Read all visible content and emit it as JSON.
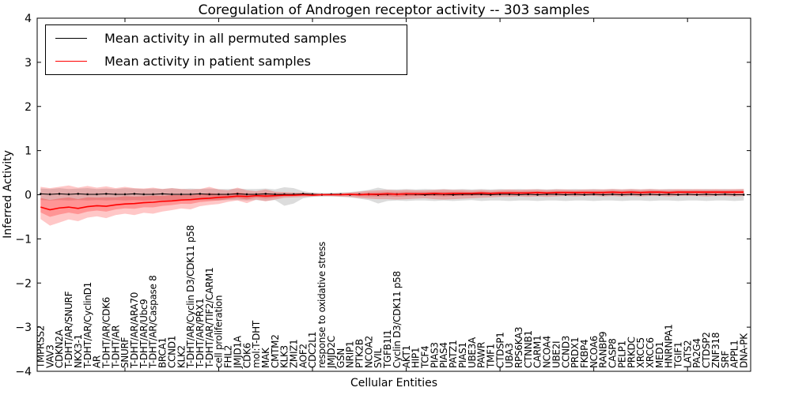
{
  "figure": {
    "title": "Coregulation of Androgen receptor activity -- 303 samples",
    "xlabel": "Cellular Entities",
    "ylabel": "Inferred Activity"
  },
  "legend": {
    "entries": [
      {
        "label": "Mean activity in all permuted samples",
        "color": "#000000"
      },
      {
        "label": "Mean activity in patient samples",
        "color": "#ff0000"
      }
    ]
  },
  "chart_data": {
    "type": "line",
    "title": "Coregulation of Androgen receptor activity -- 303 samples",
    "xlabel": "Cellular Entities",
    "ylabel": "Inferred Activity",
    "ylim": [
      -4,
      4
    ],
    "yticks": [
      4,
      3,
      2,
      1,
      0,
      -1,
      -2,
      -3,
      -4
    ],
    "grid": false,
    "legend_position": "upper left",
    "categories": [
      "TMPRSS2",
      "VAV3",
      "CDKN2A",
      "T-DHT/AR/SNURF",
      "NKX3-1",
      "T-DHT/AR/CyclinD1",
      "AR",
      "T-DHT/AR/CDK6",
      "T-DHT/AR",
      "SNURF",
      "T-DHT/AR/ARA70",
      "T-DHT/AR/Ubc9",
      "T-DHT/AR/Caspase 8",
      "BRCA1",
      "CCND1",
      "KLK2",
      "T-DHT/AR/Cyclin D3/CDK11 p58",
      "T-DHT/AR/PRX1",
      "T-DHT/AR/TIF2/CARM1",
      "cell proliferation",
      "FHL2",
      "JMJD1A",
      "CDK6",
      "mol:T-DHT",
      "MAK",
      "CMTM2",
      "KLK3",
      "ZMIZ1",
      "AOF2",
      "CDC2L1",
      "response to oxidative stress",
      "JMJD2C",
      "GSN",
      "NRIP1",
      "PTK2B",
      "NCOA2",
      "SVIL",
      "TGFB1I1",
      "Cyclin D3/CDK11 p58",
      "AKT1",
      "HIP1",
      "TCF4",
      "PIAS3",
      "PIAS4",
      "PATZ1",
      "PIAS1",
      "UBE3A",
      "PAWR",
      "TMF1",
      "CTDSP1",
      "UBA3",
      "RPS6KA3",
      "CTNNB1",
      "CARM1",
      "NCOA4",
      "UBE2I",
      "CCND3",
      "PRDX1",
      "FKBP4",
      "NCOA6",
      "RANBP9",
      "CASP8",
      "PELP1",
      "PRKDC",
      "XRCC5",
      "XRCC6",
      "MED1",
      "HNRNPA1",
      "TGIF1",
      "LATS2",
      "PA2G4",
      "CTDSP2",
      "ZNF318",
      "SRF",
      "APPL1",
      "DNA-PK"
    ],
    "series": [
      {
        "name": "Mean activity in all permuted samples",
        "color": "#000000",
        "band_color": "rgba(128,128,128,0.28)",
        "values": [
          0.02,
          0.01,
          0.02,
          0.01,
          0.02,
          0.01,
          0.01,
          0.02,
          0.01,
          0.01,
          0.02,
          0.01,
          0.01,
          0.02,
          0.01,
          0.01,
          0.01,
          0.02,
          0.01,
          0.01,
          0.01,
          0.02,
          0.01,
          0.01,
          0.02,
          0.01,
          0.01,
          0.01,
          0.02,
          0.01,
          0.0,
          0.01,
          0.01,
          0.0,
          0.01,
          0.01,
          0.0,
          0.01,
          0.01,
          0.01,
          0.01,
          0.0,
          0.01,
          0.01,
          0.0,
          0.01,
          0.01,
          0.01,
          0.0,
          0.01,
          0.01,
          0.0,
          0.01,
          0.0,
          0.01,
          0.01,
          0.0,
          0.01,
          0.0,
          0.01,
          0.0,
          0.01,
          0.0,
          0.01,
          0.0,
          0.01,
          0.0,
          0.01,
          0.0,
          0.01,
          0.0,
          0.01,
          0.0,
          0.01,
          0.0,
          0.0
        ],
        "band": [
          [
            -0.12,
            0.14
          ],
          [
            -0.13,
            0.13
          ],
          [
            -0.12,
            0.15
          ],
          [
            -0.13,
            0.13
          ],
          [
            -0.12,
            0.14
          ],
          [
            -0.13,
            0.15
          ],
          [
            -0.12,
            0.13
          ],
          [
            -0.13,
            0.14
          ],
          [
            -0.12,
            0.13
          ],
          [
            -0.13,
            0.15
          ],
          [
            -0.12,
            0.14
          ],
          [
            -0.13,
            0.13
          ],
          [
            -0.12,
            0.14
          ],
          [
            -0.13,
            0.13
          ],
          [
            -0.12,
            0.15
          ],
          [
            -0.12,
            0.13
          ],
          [
            -0.13,
            0.14
          ],
          [
            -0.12,
            0.13
          ],
          [
            -0.12,
            0.14
          ],
          [
            -0.13,
            0.13
          ],
          [
            -0.12,
            0.13
          ],
          [
            -0.12,
            0.14
          ],
          [
            -0.13,
            0.13
          ],
          [
            -0.12,
            0.13
          ],
          [
            -0.14,
            0.14
          ],
          [
            -0.12,
            0.12
          ],
          [
            -0.25,
            0.17
          ],
          [
            -0.2,
            0.15
          ],
          [
            -0.08,
            0.08
          ],
          [
            -0.05,
            0.05
          ],
          [
            -0.04,
            0.04
          ],
          [
            -0.04,
            0.04
          ],
          [
            -0.05,
            0.05
          ],
          [
            -0.06,
            0.06
          ],
          [
            -0.09,
            0.08
          ],
          [
            -0.12,
            0.11
          ],
          [
            -0.2,
            0.16
          ],
          [
            -0.14,
            0.12
          ],
          [
            -0.13,
            0.12
          ],
          [
            -0.14,
            0.13
          ],
          [
            -0.13,
            0.12
          ],
          [
            -0.13,
            0.13
          ],
          [
            -0.14,
            0.12
          ],
          [
            -0.13,
            0.13
          ],
          [
            -0.14,
            0.12
          ],
          [
            -0.13,
            0.13
          ],
          [
            -0.12,
            0.12
          ],
          [
            -0.14,
            0.13
          ],
          [
            -0.13,
            0.12
          ],
          [
            -0.13,
            0.13
          ],
          [
            -0.14,
            0.12
          ],
          [
            -0.13,
            0.13
          ],
          [
            -0.13,
            0.12
          ],
          [
            -0.14,
            0.13
          ],
          [
            -0.13,
            0.12
          ],
          [
            -0.13,
            0.13
          ],
          [
            -0.14,
            0.12
          ],
          [
            -0.13,
            0.13
          ],
          [
            -0.13,
            0.12
          ],
          [
            -0.14,
            0.13
          ],
          [
            -0.13,
            0.12
          ],
          [
            -0.13,
            0.13
          ],
          [
            -0.14,
            0.12
          ],
          [
            -0.13,
            0.13
          ],
          [
            -0.13,
            0.12
          ],
          [
            -0.14,
            0.13
          ],
          [
            -0.13,
            0.12
          ],
          [
            -0.13,
            0.13
          ],
          [
            -0.14,
            0.12
          ],
          [
            -0.13,
            0.13
          ],
          [
            -0.13,
            0.12
          ],
          [
            -0.14,
            0.13
          ],
          [
            -0.13,
            0.12
          ],
          [
            -0.13,
            0.13
          ],
          [
            -0.14,
            0.12
          ],
          [
            -0.13,
            0.13
          ]
        ]
      },
      {
        "name": "Mean activity in patient samples",
        "color": "#ff0000",
        "band_color": "rgba(255,0,0,0.22)",
        "inner_band_fraction": 0.45,
        "values": [
          -0.28,
          -0.34,
          -0.3,
          -0.28,
          -0.31,
          -0.27,
          -0.25,
          -0.26,
          -0.23,
          -0.21,
          -0.2,
          -0.18,
          -0.17,
          -0.15,
          -0.14,
          -0.12,
          -0.11,
          -0.09,
          -0.08,
          -0.06,
          -0.05,
          -0.03,
          -0.04,
          -0.02,
          -0.03,
          -0.02,
          -0.01,
          -0.01,
          0.0,
          -0.01,
          0.0,
          0.0,
          0.0,
          0.01,
          0.0,
          0.01,
          0.01,
          0.02,
          0.01,
          0.02,
          0.02,
          0.02,
          0.03,
          0.02,
          0.03,
          0.03,
          0.03,
          0.04,
          0.03,
          0.04,
          0.04,
          0.04,
          0.04,
          0.05,
          0.04,
          0.05,
          0.05,
          0.05,
          0.05,
          0.05,
          0.05,
          0.06,
          0.05,
          0.06,
          0.05,
          0.06,
          0.06,
          0.05,
          0.06,
          0.06,
          0.06,
          0.06,
          0.06,
          0.06,
          0.06,
          0.06
        ],
        "band": [
          [
            -0.55,
            0.18
          ],
          [
            -0.7,
            0.15
          ],
          [
            -0.63,
            0.18
          ],
          [
            -0.56,
            0.21
          ],
          [
            -0.6,
            0.16
          ],
          [
            -0.52,
            0.2
          ],
          [
            -0.49,
            0.16
          ],
          [
            -0.53,
            0.19
          ],
          [
            -0.46,
            0.15
          ],
          [
            -0.43,
            0.18
          ],
          [
            -0.46,
            0.15
          ],
          [
            -0.41,
            0.14
          ],
          [
            -0.43,
            0.16
          ],
          [
            -0.38,
            0.13
          ],
          [
            -0.35,
            0.15
          ],
          [
            -0.31,
            0.13
          ],
          [
            -0.33,
            0.12
          ],
          [
            -0.26,
            0.13
          ],
          [
            -0.23,
            0.18
          ],
          [
            -0.21,
            0.12
          ],
          [
            -0.16,
            0.1
          ],
          [
            -0.13,
            0.16
          ],
          [
            -0.19,
            0.1
          ],
          [
            -0.11,
            0.08
          ],
          [
            -0.15,
            0.12
          ],
          [
            -0.11,
            0.07
          ],
          [
            -0.07,
            0.06
          ],
          [
            -0.06,
            0.05
          ],
          [
            -0.05,
            0.05
          ],
          [
            -0.04,
            0.04
          ],
          [
            -0.03,
            0.03
          ],
          [
            -0.03,
            0.03
          ],
          [
            -0.04,
            0.04
          ],
          [
            -0.05,
            0.05
          ],
          [
            -0.07,
            0.07
          ],
          [
            -0.09,
            0.09
          ],
          [
            -0.1,
            0.1
          ],
          [
            -0.1,
            0.11
          ],
          [
            -0.11,
            0.1
          ],
          [
            -0.1,
            0.11
          ],
          [
            -0.09,
            0.1
          ],
          [
            -0.08,
            0.1
          ],
          [
            -0.1,
            0.11
          ],
          [
            -0.11,
            0.12
          ],
          [
            -0.1,
            0.11
          ],
          [
            -0.09,
            0.11
          ],
          [
            -0.08,
            0.1
          ],
          [
            -0.07,
            0.11
          ],
          [
            -0.06,
            0.1
          ],
          [
            -0.05,
            0.11
          ],
          [
            -0.05,
            0.12
          ],
          [
            -0.04,
            0.11
          ],
          [
            -0.05,
            0.12
          ],
          [
            -0.04,
            0.12
          ],
          [
            -0.05,
            0.11
          ],
          [
            -0.04,
            0.12
          ],
          [
            -0.03,
            0.12
          ],
          [
            -0.04,
            0.11
          ],
          [
            -0.03,
            0.12
          ],
          [
            -0.03,
            0.12
          ],
          [
            -0.04,
            0.12
          ],
          [
            -0.03,
            0.13
          ],
          [
            -0.04,
            0.12
          ],
          [
            -0.03,
            0.13
          ],
          [
            -0.04,
            0.12
          ],
          [
            -0.03,
            0.13
          ],
          [
            -0.03,
            0.12
          ],
          [
            -0.04,
            0.12
          ],
          [
            -0.03,
            0.13
          ],
          [
            -0.03,
            0.12
          ],
          [
            -0.03,
            0.13
          ],
          [
            -0.04,
            0.12
          ],
          [
            -0.03,
            0.13
          ],
          [
            -0.03,
            0.12
          ],
          [
            -0.04,
            0.13
          ],
          [
            -0.03,
            0.13
          ]
        ]
      }
    ]
  }
}
